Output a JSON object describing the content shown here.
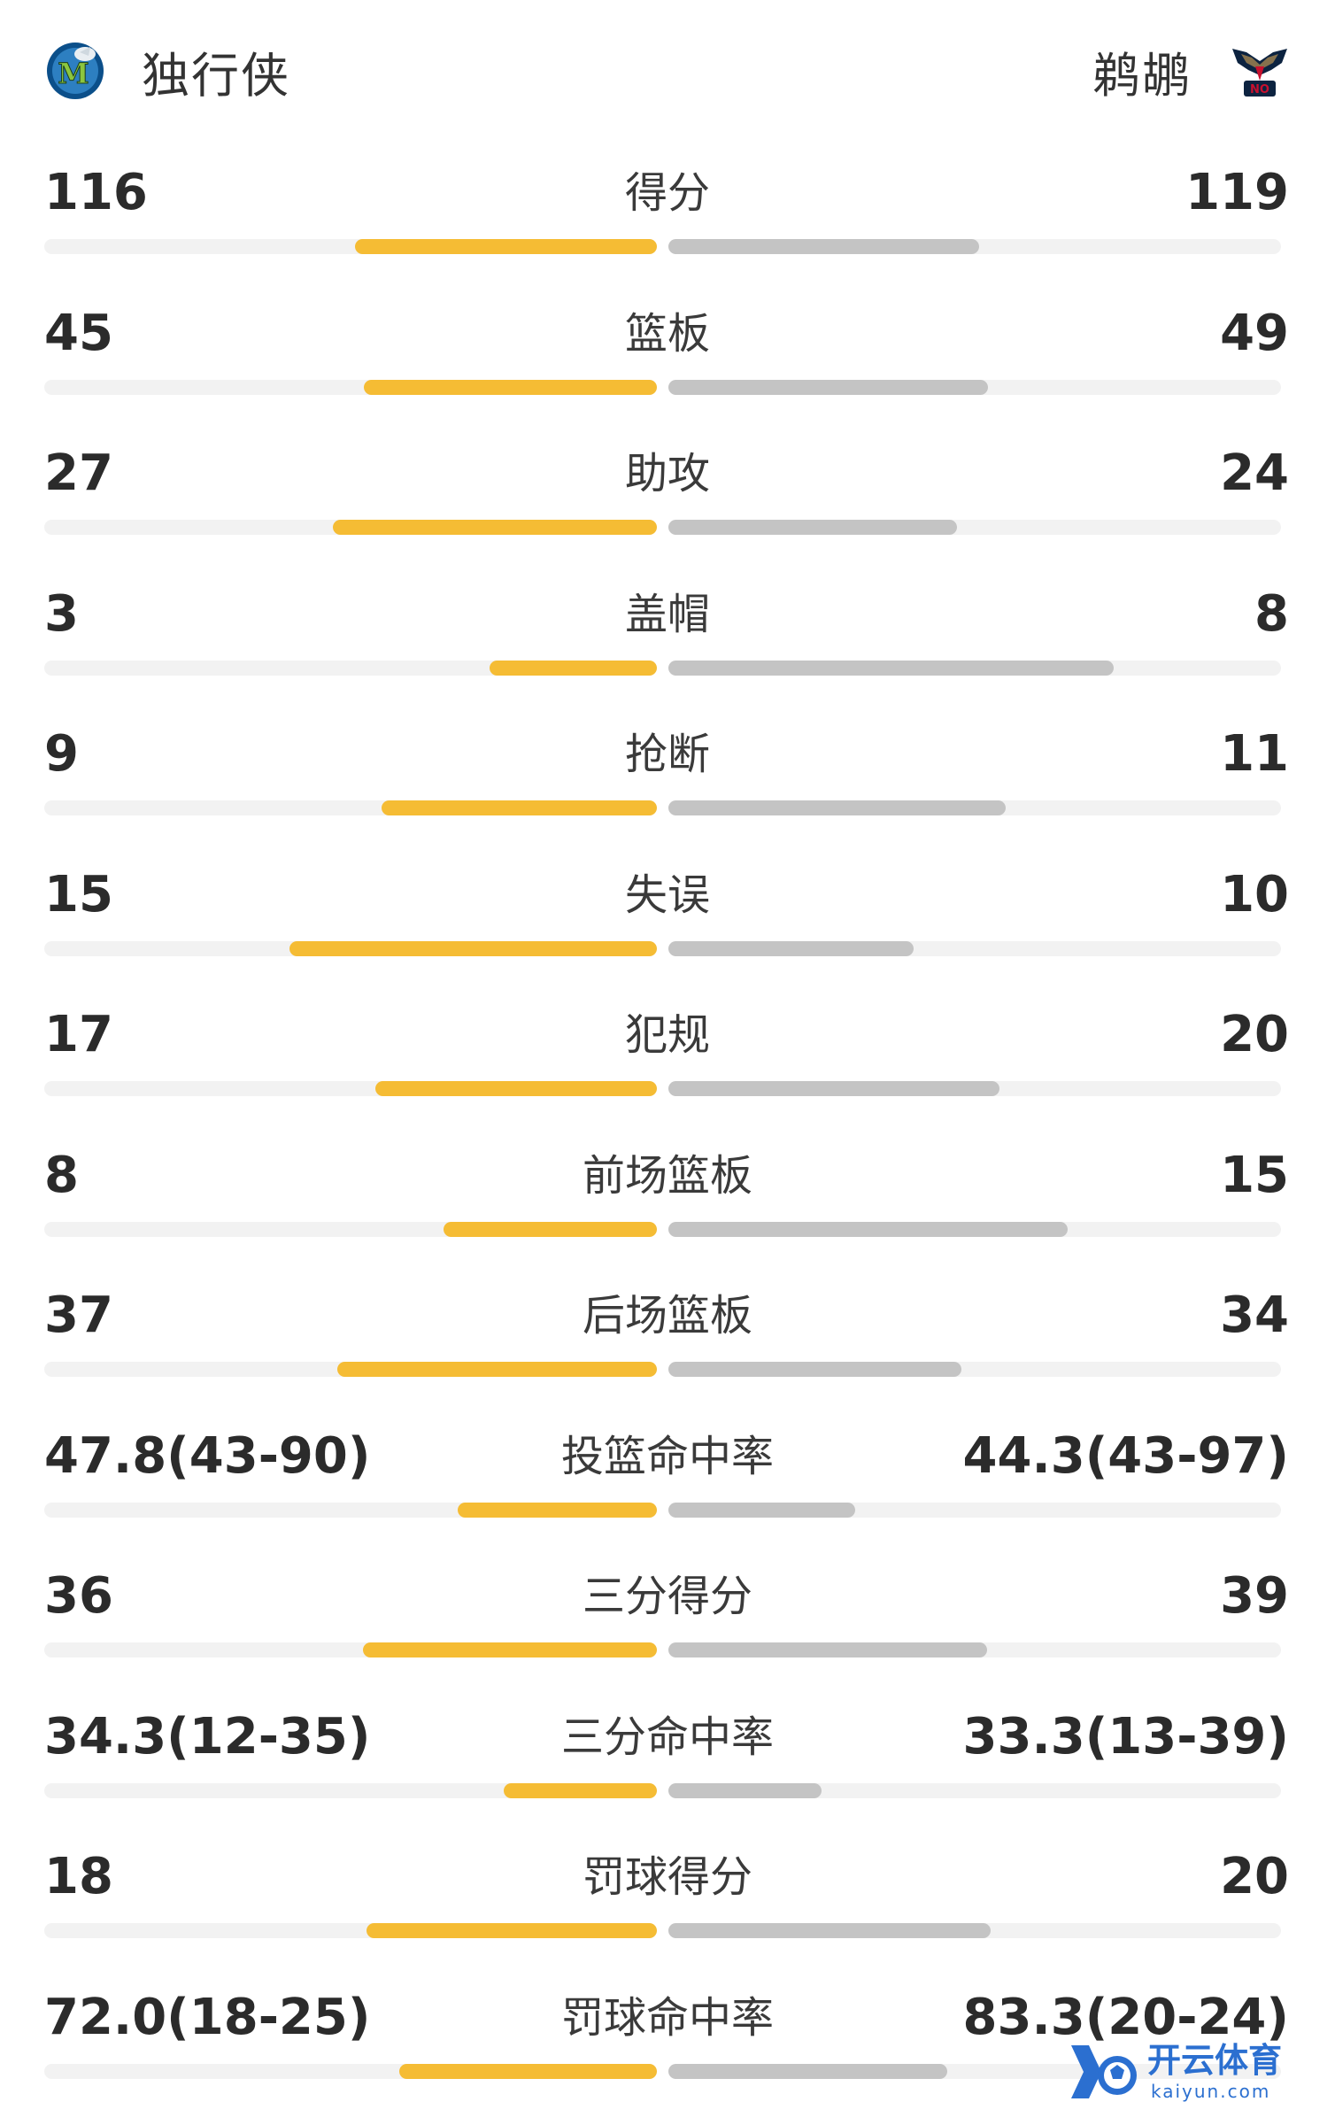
{
  "header": {
    "left_team": {
      "name": "独行侠",
      "logo_icon": "mavericks-logo-icon"
    },
    "right_team": {
      "name": "鹈鹕",
      "logo_icon": "pelicans-logo-icon",
      "logo_text": "NO"
    }
  },
  "colors": {
    "left_bar": "#f5bc34",
    "right_bar": "#c4c4c4",
    "track": "#f2f2f2"
  },
  "stats": [
    {
      "label": "得分",
      "left": "116",
      "right": "119",
      "left_share": 0.493,
      "right_share": 0.507
    },
    {
      "label": "篮板",
      "left": "45",
      "right": "49",
      "left_share": 0.479,
      "right_share": 0.521
    },
    {
      "label": "助攻",
      "left": "27",
      "right": "24",
      "left_share": 0.529,
      "right_share": 0.471
    },
    {
      "label": "盖帽",
      "left": "3",
      "right": "8",
      "left_share": 0.273,
      "right_share": 0.727
    },
    {
      "label": "抢断",
      "left": "9",
      "right": "11",
      "left_share": 0.45,
      "right_share": 0.55
    },
    {
      "label": "失误",
      "left": "15",
      "right": "10",
      "left_share": 0.6,
      "right_share": 0.4
    },
    {
      "label": "犯规",
      "left": "17",
      "right": "20",
      "left_share": 0.459,
      "right_share": 0.541
    },
    {
      "label": "前场篮板",
      "left": "8",
      "right": "15",
      "left_share": 0.348,
      "right_share": 0.652
    },
    {
      "label": "后场篮板",
      "left": "37",
      "right": "34",
      "left_share": 0.521,
      "right_share": 0.479
    },
    {
      "label": "投篮命中率",
      "left": "47.8(43-90)",
      "right": "44.3(43-97)",
      "left_share": 0.325,
      "right_share": 0.305
    },
    {
      "label": "三分得分",
      "left": "36",
      "right": "39",
      "left_share": 0.48,
      "right_share": 0.52
    },
    {
      "label": "三分命中率",
      "left": "34.3(12-35)",
      "right": "33.3(13-39)",
      "left_share": 0.25,
      "right_share": 0.25
    },
    {
      "label": "罚球得分",
      "left": "18",
      "right": "20",
      "left_share": 0.474,
      "right_share": 0.526
    },
    {
      "label": "罚球命中率",
      "left": "72.0(18-25)",
      "right": "83.3(20-24)",
      "left_share": 0.42,
      "right_share": 0.455
    }
  ],
  "watermark": {
    "brand": "开云体育",
    "url": "kaiyun.com"
  }
}
